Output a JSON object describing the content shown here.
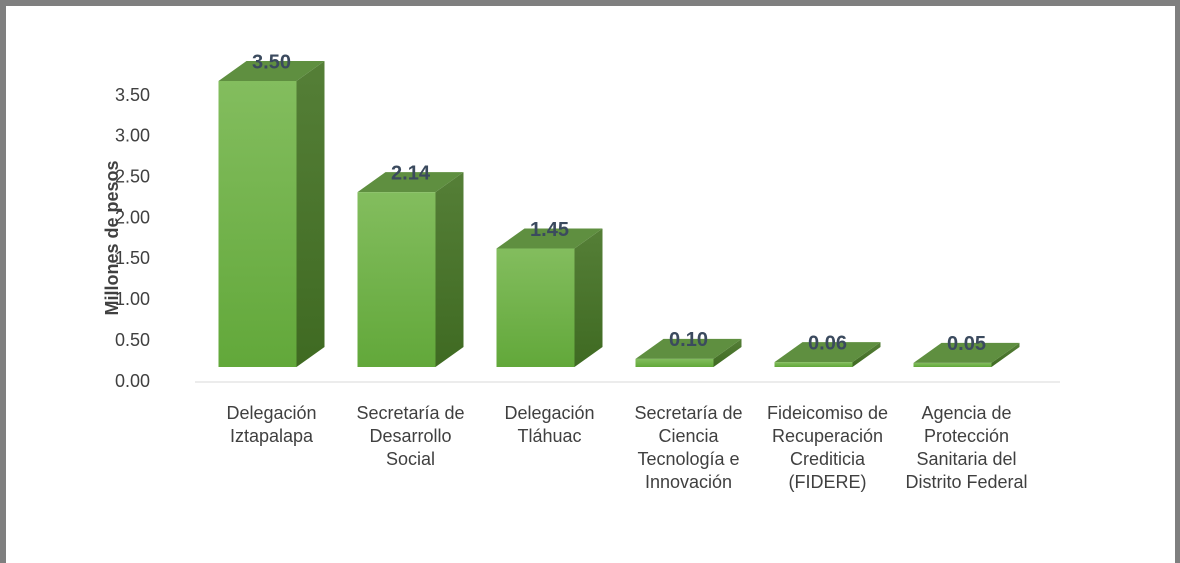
{
  "chart_data": {
    "type": "bar3d",
    "y_axis_label": "Millones de pesos",
    "categories": [
      "Delegación Iztapalapa",
      "Secretaría de Desarrollo Social",
      "Delegación Tláhuac",
      "Secretaría de Ciencia Tecnología e Innovación",
      "Fideicomiso de Recuperación Crediticia (FIDERE)",
      "Agencia de Protección Sanitaria del Distrito Federal"
    ],
    "values": [
      3.5,
      2.14,
      1.45,
      0.1,
      0.06,
      0.05
    ],
    "value_labels": [
      "3.50",
      "2.14",
      "1.45",
      "0.10",
      "0.06",
      "0.05"
    ],
    "color": "#70ad47",
    "ylim": [
      0,
      3.5
    ],
    "yticks": [
      {
        "value": 0,
        "label": "0.00"
      },
      {
        "value": 0.5,
        "label": "0.50"
      },
      {
        "value": 1,
        "label": "1.00"
      },
      {
        "value": 1.5,
        "label": "1.50"
      },
      {
        "value": 2,
        "label": "2.00"
      },
      {
        "value": 2.5,
        "label": "2.50"
      },
      {
        "value": 3,
        "label": "3.00"
      },
      {
        "value": 3.5,
        "label": "3.50"
      }
    ],
    "grid": false
  }
}
